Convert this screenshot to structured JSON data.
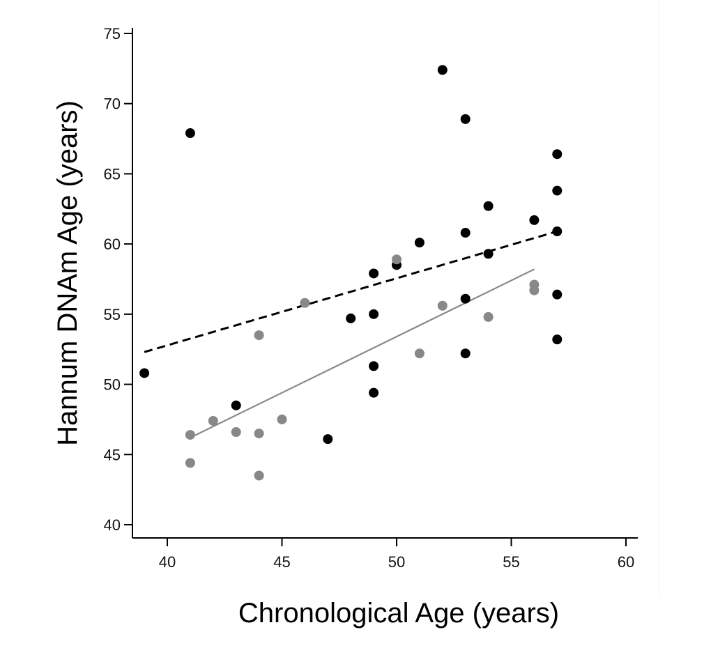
{
  "chart_data": {
    "type": "scatter",
    "xlabel": "Chronological Age (years)",
    "ylabel": "Hannum DNAm Age (years)",
    "xlim": [
      38.5,
      60.5
    ],
    "ylim": [
      39.5,
      76
    ],
    "xticks": [
      40,
      45,
      50,
      55,
      60
    ],
    "yticks": [
      40,
      45,
      50,
      55,
      60,
      65,
      70,
      75
    ],
    "grid": false,
    "legend": "none",
    "series": [
      {
        "color": "#000000",
        "points": [
          [
            39,
            50.8
          ],
          [
            41,
            67.9
          ],
          [
            43,
            48.5
          ],
          [
            47,
            46.1
          ],
          [
            48,
            54.7
          ],
          [
            49,
            57.9
          ],
          [
            49,
            55.0
          ],
          [
            49,
            51.3
          ],
          [
            49,
            49.4
          ],
          [
            50,
            58.5
          ],
          [
            51,
            60.1
          ],
          [
            52,
            72.4
          ],
          [
            53,
            68.9
          ],
          [
            53,
            60.8
          ],
          [
            53,
            56.1
          ],
          [
            53,
            52.2
          ],
          [
            54,
            62.7
          ],
          [
            54,
            59.3
          ],
          [
            56,
            61.7
          ],
          [
            57,
            66.4
          ],
          [
            57,
            63.8
          ],
          [
            57,
            60.9
          ],
          [
            57,
            56.4
          ],
          [
            57,
            53.2
          ]
        ],
        "fit": {
          "x": [
            39,
            57
          ],
          "y": [
            52.3,
            60.9
          ],
          "style": "dashed"
        }
      },
      {
        "color": "#888888",
        "points": [
          [
            41,
            46.4
          ],
          [
            41,
            44.4
          ],
          [
            42,
            47.4
          ],
          [
            43,
            46.6
          ],
          [
            44,
            53.5
          ],
          [
            44,
            46.5
          ],
          [
            44,
            43.5
          ],
          [
            45,
            47.5
          ],
          [
            46,
            55.8
          ],
          [
            50,
            58.9
          ],
          [
            51,
            52.2
          ],
          [
            52,
            55.6
          ],
          [
            54,
            54.8
          ],
          [
            56,
            57.1
          ],
          [
            56,
            56.7
          ]
        ],
        "fit": {
          "x": [
            41,
            56
          ],
          "y": [
            46.2,
            58.2
          ],
          "style": "solid"
        }
      }
    ]
  }
}
